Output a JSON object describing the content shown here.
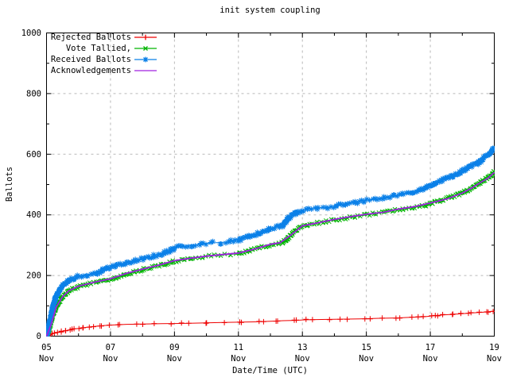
{
  "chart_data": {
    "type": "line",
    "title": "init system coupling",
    "grid": true,
    "legend_position": "top-left",
    "x_axis": {
      "label": "Date/Time (UTC)",
      "unit": "days since 05 Nov 00:00 UTC",
      "range": [
        0,
        14
      ],
      "ticks": [
        {
          "t": 0,
          "line1": "05",
          "line2": "Nov"
        },
        {
          "t": 2,
          "line1": "07",
          "line2": "Nov"
        },
        {
          "t": 4,
          "line1": "09",
          "line2": "Nov"
        },
        {
          "t": 6,
          "line1": "11",
          "line2": "Nov"
        },
        {
          "t": 8,
          "line1": "13",
          "line2": "Nov"
        },
        {
          "t": 10,
          "line1": "15",
          "line2": "Nov"
        },
        {
          "t": 12,
          "line1": "17",
          "line2": "Nov"
        },
        {
          "t": 14,
          "line1": "19",
          "line2": "Nov"
        }
      ],
      "minor_tick_days": [
        1,
        3,
        5,
        7,
        9,
        11,
        13
      ]
    },
    "y_axis": {
      "label": "Ballots",
      "range": [
        0,
        1000
      ],
      "ticks": [
        0,
        200,
        400,
        600,
        800,
        1000
      ],
      "minor_ticks": [
        100,
        300,
        500,
        700,
        900
      ]
    },
    "series": [
      {
        "name": "Rejected Ballots",
        "color": "#ee0000",
        "marker": "plus",
        "points": [
          [
            0,
            0
          ],
          [
            0.15,
            6
          ],
          [
            0.3,
            11
          ],
          [
            0.5,
            16
          ],
          [
            0.7,
            20
          ],
          [
            0.9,
            24
          ],
          [
            1.1,
            27
          ],
          [
            1.3,
            30
          ],
          [
            1.5,
            32
          ],
          [
            1.8,
            35
          ],
          [
            2.1,
            37
          ],
          [
            2.5,
            39
          ],
          [
            3.0,
            40
          ],
          [
            3.6,
            41
          ],
          [
            4.2,
            42
          ],
          [
            5.0,
            44
          ],
          [
            5.5,
            45
          ],
          [
            6.0,
            46
          ],
          [
            6.5,
            47
          ],
          [
            7.0,
            49
          ],
          [
            7.4,
            51
          ],
          [
            7.8,
            52
          ],
          [
            8.1,
            54
          ],
          [
            8.6,
            55
          ],
          [
            9.2,
            56
          ],
          [
            9.8,
            57
          ],
          [
            10.4,
            59
          ],
          [
            10.9,
            60
          ],
          [
            11.4,
            62
          ],
          [
            11.8,
            64
          ],
          [
            12.1,
            67
          ],
          [
            12.4,
            70
          ],
          [
            12.7,
            72
          ],
          [
            13.0,
            74
          ],
          [
            13.2,
            76
          ],
          [
            13.5,
            78
          ],
          [
            13.8,
            80
          ],
          [
            14.0,
            83
          ]
        ]
      },
      {
        "name": "Vote Tallied,",
        "color": "#00b400",
        "marker": "cross",
        "points": [
          [
            0,
            0
          ],
          [
            0.05,
            12
          ],
          [
            0.12,
            38
          ],
          [
            0.2,
            68
          ],
          [
            0.3,
            95
          ],
          [
            0.42,
            118
          ],
          [
            0.55,
            136
          ],
          [
            0.7,
            149
          ],
          [
            0.85,
            157
          ],
          [
            1.0,
            163
          ],
          [
            1.2,
            169
          ],
          [
            1.4,
            174
          ],
          [
            1.6,
            178
          ],
          [
            1.8,
            183
          ],
          [
            2.0,
            187
          ],
          [
            2.3,
            197
          ],
          [
            2.6,
            207
          ],
          [
            3.0,
            219
          ],
          [
            3.4,
            230
          ],
          [
            3.8,
            241
          ],
          [
            4.0,
            247
          ],
          [
            4.3,
            252
          ],
          [
            4.6,
            257
          ],
          [
            5.0,
            263
          ],
          [
            5.4,
            267
          ],
          [
            5.8,
            270
          ],
          [
            6.0,
            272
          ],
          [
            6.3,
            281
          ],
          [
            6.6,
            291
          ],
          [
            7.0,
            301
          ],
          [
            7.2,
            305
          ],
          [
            7.35,
            307
          ],
          [
            7.5,
            318
          ],
          [
            7.65,
            334
          ],
          [
            7.8,
            350
          ],
          [
            8.0,
            362
          ],
          [
            8.3,
            370
          ],
          [
            8.6,
            376
          ],
          [
            9.0,
            383
          ],
          [
            9.4,
            390
          ],
          [
            9.8,
            397
          ],
          [
            10.2,
            403
          ],
          [
            10.6,
            409
          ],
          [
            11.0,
            417
          ],
          [
            11.4,
            423
          ],
          [
            11.8,
            430
          ],
          [
            12.0,
            437
          ],
          [
            12.3,
            447
          ],
          [
            12.6,
            457
          ],
          [
            12.9,
            468
          ],
          [
            13.1,
            478
          ],
          [
            13.35,
            492
          ],
          [
            13.55,
            507
          ],
          [
            13.75,
            519
          ],
          [
            13.9,
            530
          ],
          [
            14.0,
            542
          ]
        ]
      },
      {
        "name": "Received Ballots",
        "color": "#0a80e8",
        "marker": "asterisk",
        "points": [
          [
            0,
            0
          ],
          [
            0.04,
            15
          ],
          [
            0.1,
            48
          ],
          [
            0.16,
            80
          ],
          [
            0.22,
            108
          ],
          [
            0.3,
            132
          ],
          [
            0.4,
            152
          ],
          [
            0.5,
            166
          ],
          [
            0.6,
            176
          ],
          [
            0.7,
            185
          ],
          [
            0.85,
            192
          ],
          [
            1.0,
            197
          ],
          [
            1.2,
            201
          ],
          [
            1.4,
            205
          ],
          [
            1.6,
            209
          ],
          [
            1.7,
            213
          ],
          [
            1.78,
            221
          ],
          [
            2.0,
            228
          ],
          [
            2.2,
            234
          ],
          [
            2.5,
            242
          ],
          [
            2.8,
            250
          ],
          [
            3.0,
            255
          ],
          [
            3.2,
            260
          ],
          [
            3.5,
            268
          ],
          [
            3.8,
            280
          ],
          [
            4.0,
            290
          ],
          [
            4.2,
            295
          ],
          [
            4.5,
            300
          ],
          [
            4.8,
            303
          ],
          [
            5.0,
            306
          ],
          [
            5.3,
            308
          ],
          [
            5.6,
            310
          ],
          [
            6.0,
            318
          ],
          [
            6.2,
            324
          ],
          [
            6.5,
            335
          ],
          [
            6.8,
            346
          ],
          [
            7.0,
            355
          ],
          [
            7.2,
            360
          ],
          [
            7.35,
            362
          ],
          [
            7.45,
            374
          ],
          [
            7.55,
            388
          ],
          [
            7.7,
            400
          ],
          [
            7.85,
            409
          ],
          [
            8.0,
            414
          ],
          [
            8.2,
            418
          ],
          [
            8.5,
            422
          ],
          [
            8.8,
            425
          ],
          [
            9.0,
            428
          ],
          [
            9.3,
            434
          ],
          [
            9.6,
            440
          ],
          [
            10.0,
            448
          ],
          [
            10.3,
            452
          ],
          [
            10.6,
            457
          ],
          [
            11.0,
            465
          ],
          [
            11.3,
            471
          ],
          [
            11.6,
            479
          ],
          [
            11.8,
            485
          ],
          [
            12.0,
            496
          ],
          [
            12.2,
            506
          ],
          [
            12.5,
            519
          ],
          [
            12.8,
            531
          ],
          [
            13.0,
            544
          ],
          [
            13.2,
            557
          ],
          [
            13.45,
            568
          ],
          [
            13.6,
            580
          ],
          [
            13.75,
            593
          ],
          [
            13.9,
            607
          ],
          [
            14.0,
            622
          ]
        ]
      },
      {
        "name": "Acknowledgements",
        "color": "#a020e0",
        "marker": "none",
        "points": [
          [
            0,
            0
          ],
          [
            0.15,
            40
          ],
          [
            0.3,
            95
          ],
          [
            0.5,
            130
          ],
          [
            0.7,
            150
          ],
          [
            1.0,
            165
          ],
          [
            1.5,
            178
          ],
          [
            2.0,
            189
          ],
          [
            2.5,
            207
          ],
          [
            3.0,
            221
          ],
          [
            3.5,
            234
          ],
          [
            4.0,
            249
          ],
          [
            4.5,
            257
          ],
          [
            5.0,
            264
          ],
          [
            5.5,
            269
          ],
          [
            6.0,
            274
          ],
          [
            6.5,
            287
          ],
          [
            7.0,
            303
          ],
          [
            7.3,
            308
          ],
          [
            7.6,
            330
          ],
          [
            8.0,
            364
          ],
          [
            8.5,
            374
          ],
          [
            9.0,
            385
          ],
          [
            9.5,
            394
          ],
          [
            10.0,
            402
          ],
          [
            10.5,
            408
          ],
          [
            11.0,
            419
          ],
          [
            11.5,
            427
          ],
          [
            12.0,
            439
          ],
          [
            12.5,
            452
          ],
          [
            13.0,
            472
          ],
          [
            13.3,
            489
          ],
          [
            13.6,
            509
          ],
          [
            13.8,
            521
          ],
          [
            14.0,
            540
          ]
        ]
      }
    ]
  }
}
